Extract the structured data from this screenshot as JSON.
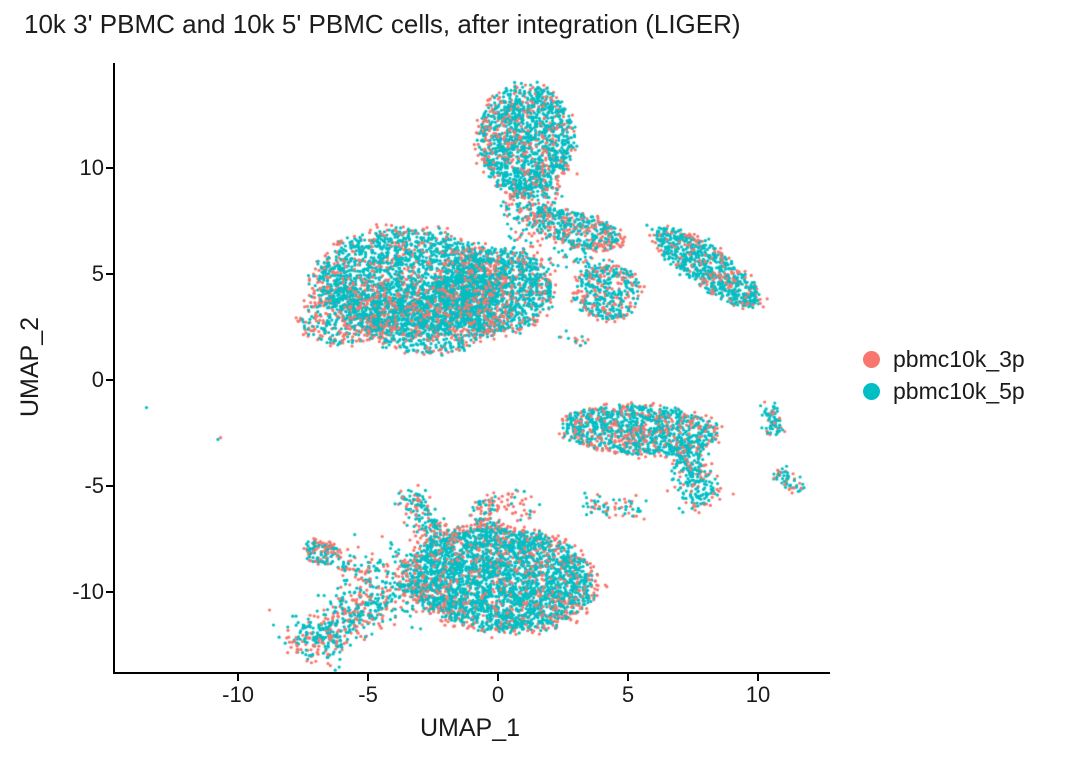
{
  "chart_data": {
    "type": "scatter",
    "title": "10k 3' PBMC and 10k 5' PBMC cells, after integration (LIGER)",
    "xlabel": "UMAP_1",
    "ylabel": "UMAP_2",
    "xlim": [
      -14.81,
      12.69
    ],
    "ylim": [
      -13.77,
      14.95
    ],
    "x_ticks": [
      -10,
      -5,
      0,
      5,
      10
    ],
    "y_ticks": [
      10,
      5,
      0,
      -5,
      -10
    ],
    "grid": false,
    "legend_position": "right",
    "axis_color": "#000000",
    "point_radius": 1.6,
    "seed": 7,
    "series": [
      {
        "name": "pbmc10k_3p",
        "color": "#F8766D"
      },
      {
        "name": "pbmc10k_5p",
        "color": "#00BFC4"
      }
    ],
    "clusters": [
      {
        "id": "head",
        "shape": "ellipse",
        "cx": 1.0,
        "cy": 11.3,
        "a": 1.8,
        "b": 2.55,
        "rot": 0,
        "n": 1500,
        "f3": 0.3
      },
      {
        "id": "neck",
        "shape": "segment",
        "x1": 0.5,
        "y1": 9.0,
        "x2": 2.0,
        "y2": 8.1,
        "w": 0.42,
        "n": 130,
        "f3": 0.38
      },
      {
        "id": "neck-trail",
        "shape": "segment",
        "x1": 0.6,
        "y1": 8.2,
        "x2": 1.2,
        "y2": 4.3,
        "w": 0.3,
        "n": 80,
        "f3": 0.42
      },
      {
        "id": "bridge-blob",
        "shape": "ellipse",
        "cx": 2.9,
        "cy": 7.1,
        "a": 1.9,
        "b": 0.8,
        "rot": -18,
        "n": 430,
        "f3": 0.45
      },
      {
        "id": "mid-blob",
        "shape": "ellipse",
        "cx": 4.1,
        "cy": 4.1,
        "a": 1.3,
        "b": 1.25,
        "rot": 0,
        "n": 380,
        "f3": 0.4
      },
      {
        "id": "mid-blob-trail",
        "shape": "segment",
        "x1": 2.4,
        "y1": 6.2,
        "x2": 3.8,
        "y2": 5.0,
        "w": 0.4,
        "n": 60,
        "f3": 0.42
      },
      {
        "id": "mid-blob-spur",
        "shape": "segment",
        "x1": 2.4,
        "y1": 2.2,
        "x2": 3.3,
        "y2": 1.7,
        "w": 0.15,
        "n": 14,
        "f3": 0.5
      },
      {
        "id": "left-main",
        "shape": "ellipse",
        "cx": -3.5,
        "cy": 4.6,
        "a": 3.55,
        "b": 2.45,
        "rot": -4,
        "n": 2500,
        "f3": 0.28
      },
      {
        "id": "left-low",
        "shape": "ellipse",
        "cx": -2.7,
        "cy": 2.7,
        "a": 2.6,
        "b": 1.5,
        "rot": 0,
        "n": 800,
        "f3": 0.38
      },
      {
        "id": "left-right-lobe",
        "shape": "ellipse",
        "cx": -0.2,
        "cy": 4.2,
        "a": 2.2,
        "b": 1.95,
        "rot": 0,
        "n": 1300,
        "f3": 0.3
      },
      {
        "id": "left-edge",
        "shape": "ellipse",
        "cx": -5.9,
        "cy": 3.1,
        "a": 1.75,
        "b": 1.4,
        "rot": 18,
        "n": 420,
        "f3": 0.52
      },
      {
        "id": "right-mid",
        "shape": "ellipse",
        "cx": 8.0,
        "cy": 5.3,
        "a": 2.6,
        "b": 0.85,
        "rot": -43,
        "n": 760,
        "f3": 0.27
      },
      {
        "id": "right-bar",
        "shape": "ellipse",
        "cx": 5.35,
        "cy": -2.35,
        "a": 2.95,
        "b": 1.15,
        "rot": -4,
        "n": 1150,
        "f3": 0.35
      },
      {
        "id": "bar-tail",
        "shape": "segment",
        "x1": 7.05,
        "y1": -3.3,
        "x2": 7.85,
        "y2": -5.95,
        "w": 0.36,
        "n": 260,
        "f3": 0.3
      },
      {
        "id": "sliver-upper",
        "shape": "segment",
        "x1": 10.25,
        "y1": -1.15,
        "x2": 10.7,
        "y2": -2.6,
        "w": 0.18,
        "n": 70,
        "f3": 0.25
      },
      {
        "id": "sliver-lower",
        "shape": "segment",
        "x1": 10.8,
        "y1": -4.15,
        "x2": 11.45,
        "y2": -5.3,
        "w": 0.18,
        "n": 55,
        "f3": 0.3
      },
      {
        "id": "sparse-row",
        "shape": "segment",
        "x1": 3.2,
        "y1": -5.8,
        "x2": 5.6,
        "y2": -6.25,
        "w": 0.22,
        "n": 65,
        "f3": 0.5
      },
      {
        "id": "sparse-row-left",
        "shape": "segment",
        "x1": 0.15,
        "y1": -5.5,
        "x2": 1.3,
        "y2": -6.3,
        "w": 0.25,
        "n": 38,
        "f3": 0.5
      },
      {
        "id": "bottom-oval",
        "shape": "ellipse",
        "cx": 0.0,
        "cy": -9.4,
        "a": 3.5,
        "b": 2.4,
        "rot": -7,
        "n": 3300,
        "f3": 0.3
      },
      {
        "id": "horn-left",
        "shape": "segment",
        "x1": -2.5,
        "y1": -7.5,
        "x2": -3.5,
        "y2": -5.2,
        "w": 0.28,
        "n": 170,
        "f3": 0.45
      },
      {
        "id": "horn-right",
        "shape": "segment",
        "x1": -0.42,
        "y1": -7.3,
        "x2": -0.58,
        "y2": -5.5,
        "w": 0.24,
        "n": 110,
        "f3": 0.55
      },
      {
        "id": "tail",
        "shape": "segment",
        "x1": -7.75,
        "y1": -12.8,
        "x2": -4.55,
        "y2": -10.3,
        "w": 0.5,
        "n": 470,
        "f3": 0.42
      },
      {
        "id": "tail-join",
        "shape": "segment",
        "x1": -4.5,
        "y1": -10.2,
        "x2": -3.0,
        "y2": -8.9,
        "w": 0.75,
        "n": 220,
        "f3": 0.38
      },
      {
        "id": "tail-clump",
        "shape": "ellipse",
        "cx": -6.85,
        "cy": -8.1,
        "a": 0.72,
        "b": 0.55,
        "rot": -20,
        "n": 130,
        "f3": 0.5
      },
      {
        "id": "clump-trail",
        "shape": "segment",
        "x1": -6.1,
        "y1": -8.55,
        "x2": -4.9,
        "y2": -9.55,
        "w": 0.35,
        "n": 50,
        "f3": 0.45
      }
    ],
    "outliers": [
      {
        "x": -13.6,
        "y": -1.3,
        "s": 1
      },
      {
        "x": -10.85,
        "y": -2.8,
        "s": 1
      },
      {
        "x": -10.75,
        "y": -2.72,
        "s": 0
      },
      {
        "x": 5.65,
        "y": 7.3,
        "s": 1
      },
      {
        "x": 5.85,
        "y": 7.1,
        "s": 1
      },
      {
        "x": 6.05,
        "y": 6.95,
        "s": 1
      }
    ]
  }
}
